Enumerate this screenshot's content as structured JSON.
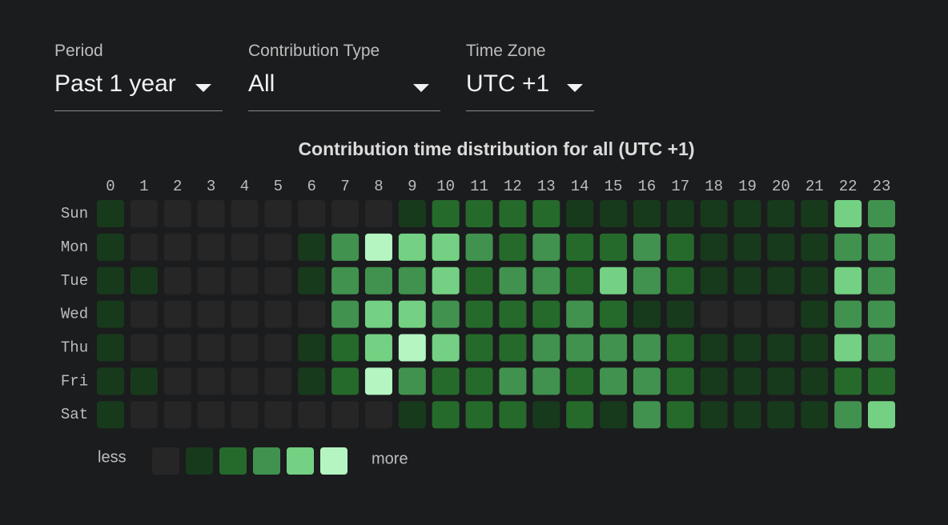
{
  "controls": [
    {
      "label": "Period",
      "value": "Past 1 year"
    },
    {
      "label": "Contribution Type",
      "value": "All"
    },
    {
      "label": "Time Zone",
      "value": "UTC +1"
    }
  ],
  "chart_data": {
    "type": "heatmap",
    "title": "Contribution time distribution for all (UTC +1)",
    "x": [
      "0",
      "1",
      "2",
      "3",
      "4",
      "5",
      "6",
      "7",
      "8",
      "9",
      "10",
      "11",
      "12",
      "13",
      "14",
      "15",
      "16",
      "17",
      "18",
      "19",
      "20",
      "21",
      "22",
      "23"
    ],
    "y": [
      "Sun",
      "Mon",
      "Tue",
      "Wed",
      "Thu",
      "Fri",
      "Sat"
    ],
    "values": [
      [
        1,
        0,
        0,
        0,
        0,
        0,
        0,
        0,
        0,
        1,
        2,
        2,
        2,
        2,
        1,
        1,
        1,
        1,
        1,
        1,
        1,
        1,
        4,
        3
      ],
      [
        1,
        0,
        0,
        0,
        0,
        0,
        1,
        3,
        5,
        4,
        4,
        3,
        2,
        3,
        2,
        2,
        3,
        2,
        1,
        1,
        1,
        1,
        3,
        3
      ],
      [
        1,
        1,
        0,
        0,
        0,
        0,
        1,
        3,
        3,
        3,
        4,
        2,
        3,
        3,
        2,
        4,
        3,
        2,
        1,
        1,
        1,
        1,
        4,
        3
      ],
      [
        1,
        0,
        0,
        0,
        0,
        0,
        0,
        3,
        4,
        4,
        3,
        2,
        2,
        2,
        3,
        2,
        1,
        1,
        0,
        0,
        0,
        1,
        3,
        3
      ],
      [
        1,
        0,
        0,
        0,
        0,
        0,
        1,
        2,
        4,
        5,
        4,
        2,
        2,
        3,
        3,
        3,
        3,
        2,
        1,
        1,
        1,
        1,
        4,
        3
      ],
      [
        1,
        1,
        0,
        0,
        0,
        0,
        1,
        2,
        5,
        3,
        2,
        2,
        3,
        3,
        2,
        3,
        3,
        2,
        1,
        1,
        1,
        1,
        2,
        2
      ],
      [
        1,
        0,
        0,
        0,
        0,
        0,
        0,
        0,
        0,
        1,
        2,
        2,
        2,
        1,
        2,
        1,
        3,
        2,
        1,
        1,
        1,
        1,
        3,
        4
      ]
    ],
    "colors": [
      "#262627",
      "#183a1c",
      "#256a2b",
      "#41924e",
      "#74d183",
      "#b5f5c2"
    ],
    "legend": {
      "low": "less",
      "high": "more"
    }
  }
}
